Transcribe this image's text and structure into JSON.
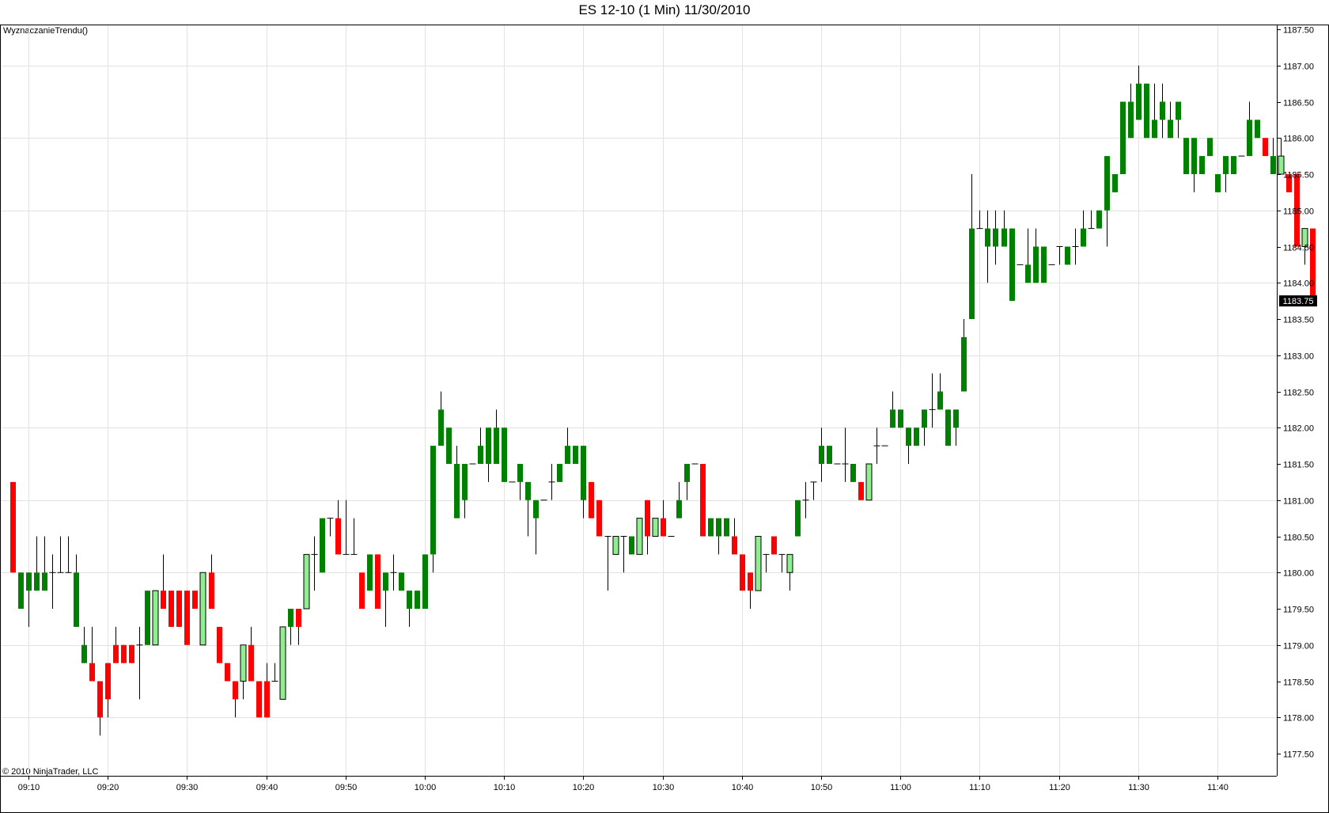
{
  "window": {
    "title": "ES 12-10 (1 Min)  11/30/2010",
    "indicator_label": "WyznaczanieTrendu()",
    "copyright": "© 2010 NinjaTrader, LLC"
  },
  "colors": {
    "up_strong": "#008000",
    "up_light": "#90ee90",
    "down": "#ff0000",
    "wick": "#000000",
    "grid": "#e2e2e2",
    "last_price_bg": "#000000",
    "last_price_fg": "#ffffff"
  },
  "chart_data": {
    "type": "candlestick",
    "title": "ES 12-10 (1 Min)  11/30/2010",
    "ylim": [
      1177.25,
      1187.6
    ],
    "y_ticks": [
      "1177.50",
      "1178.00",
      "1178.50",
      "1179.00",
      "1179.50",
      "1180.00",
      "1180.50",
      "1181.00",
      "1181.50",
      "1182.00",
      "1182.50",
      "1183.00",
      "1183.50",
      "1184.00",
      "1184.50",
      "1185.00",
      "1185.50",
      "1186.00",
      "1186.50",
      "1187.00",
      "1187.50"
    ],
    "x_ticks": [
      "09:10",
      "09:20",
      "09:30",
      "09:40",
      "09:50",
      "10:00",
      "10:10",
      "10:20",
      "10:30",
      "10:40",
      "10:50",
      "11:00",
      "11:10",
      "11:20",
      "11:30",
      "11:40"
    ],
    "first_bar_time": "09:08",
    "last_price": "1183.75",
    "grid": true,
    "color_legend": {
      "g": "up strong (dark green)",
      "l": "up weak (light green)",
      "r": "down (red)"
    },
    "bars_ohlc_color": [
      [
        1181.25,
        1181.25,
        1180.0,
        1180.0,
        "r"
      ],
      [
        1180.0,
        1180.0,
        1179.5,
        1179.5,
        "g"
      ],
      [
        1180.0,
        1180.0,
        1179.25,
        1179.75,
        "g"
      ],
      [
        1180.0,
        1180.5,
        1180.0,
        1179.75,
        "g"
      ],
      [
        1180.0,
        1180.5,
        1180.0,
        1179.75,
        "g"
      ],
      [
        1180.0,
        1180.25,
        1179.5,
        1180.0,
        "g"
      ],
      [
        1180.0,
        1180.5,
        1180.0,
        1180.0,
        "g"
      ],
      [
        1180.0,
        1180.5,
        1180.0,
        1180.0,
        "g"
      ],
      [
        1180.0,
        1180.25,
        1179.25,
        1179.25,
        "g"
      ],
      [
        1179.0,
        1179.25,
        1178.75,
        1178.75,
        "g"
      ],
      [
        1178.75,
        1179.25,
        1178.5,
        1178.5,
        "r"
      ],
      [
        1178.5,
        1178.5,
        1177.75,
        1178.0,
        "r"
      ],
      [
        1178.75,
        1178.75,
        1178.0,
        1178.25,
        "r"
      ],
      [
        1179.0,
        1179.25,
        1178.75,
        1178.75,
        "r"
      ],
      [
        1179.0,
        1179.0,
        1178.75,
        1178.75,
        "r"
      ],
      [
        1179.0,
        1179.0,
        1178.75,
        1178.75,
        "r"
      ],
      [
        1179.0,
        1179.25,
        1178.25,
        1179.0,
        "g"
      ],
      [
        1179.0,
        1179.75,
        1179.0,
        1179.75,
        "g"
      ],
      [
        1179.0,
        1179.0,
        1179.0,
        1179.75,
        "l"
      ],
      [
        1179.75,
        1180.25,
        1179.5,
        1179.5,
        "r"
      ],
      [
        1179.75,
        1179.75,
        1179.25,
        1179.25,
        "r"
      ],
      [
        1179.75,
        1179.75,
        1179.25,
        1179.25,
        "r"
      ],
      [
        1179.75,
        1179.75,
        1179.0,
        1179.0,
        "r"
      ],
      [
        1179.75,
        1179.75,
        1179.5,
        1179.5,
        "r"
      ],
      [
        1179.0,
        1179.0,
        1179.0,
        1180.0,
        "l"
      ],
      [
        1180.0,
        1180.25,
        1179.5,
        1179.5,
        "r"
      ],
      [
        1179.25,
        1179.25,
        1178.75,
        1178.75,
        "r"
      ],
      [
        1178.75,
        1178.75,
        1178.5,
        1178.5,
        "r"
      ],
      [
        1178.5,
        1178.5,
        1178.0,
        1178.25,
        "r"
      ],
      [
        1178.5,
        1178.5,
        1178.25,
        1179.0,
        "l"
      ],
      [
        1179.0,
        1179.25,
        1178.5,
        1178.5,
        "r"
      ],
      [
        1178.5,
        1178.5,
        1178.0,
        1178.0,
        "r"
      ],
      [
        1178.5,
        1178.75,
        1178.0,
        1178.0,
        "r"
      ],
      [
        1178.5,
        1178.75,
        1178.5,
        1178.5,
        "r"
      ],
      [
        1178.25,
        1178.25,
        1178.25,
        1179.25,
        "l"
      ],
      [
        1179.5,
        1179.5,
        1179.0,
        1179.25,
        "g"
      ],
      [
        1179.5,
        1179.5,
        1179.0,
        1179.25,
        "r"
      ],
      [
        1179.5,
        1179.5,
        1179.5,
        1180.25,
        "l"
      ],
      [
        1180.25,
        1180.5,
        1179.75,
        1180.25,
        "r"
      ],
      [
        1180.75,
        1180.75,
        1180.0,
        1180.0,
        "g"
      ],
      [
        1180.75,
        1180.75,
        1180.5,
        1180.75,
        "r"
      ],
      [
        1180.75,
        1181.0,
        1180.25,
        1180.25,
        "r"
      ],
      [
        1180.25,
        1181.0,
        1180.25,
        1180.25,
        "g"
      ],
      [
        1180.25,
        1180.75,
        1180.25,
        1180.25,
        "g"
      ],
      [
        1179.5,
        1179.5,
        1179.5,
        1180.0,
        "r"
      ],
      [
        1180.25,
        1180.25,
        1179.75,
        1179.75,
        "g"
      ],
      [
        1180.25,
        1180.25,
        1179.5,
        1179.5,
        "r"
      ],
      [
        1180.0,
        1180.0,
        1179.25,
        1179.75,
        "g"
      ],
      [
        1180.0,
        1180.25,
        1179.75,
        1180.0,
        "g"
      ],
      [
        1180.0,
        1180.0,
        1179.75,
        1179.75,
        "g"
      ],
      [
        1179.75,
        1179.75,
        1179.25,
        1179.5,
        "g"
      ],
      [
        1179.75,
        1179.75,
        1179.5,
        1179.5,
        "g"
      ],
      [
        1180.25,
        1180.25,
        1179.5,
        1179.5,
        "g"
      ],
      [
        1180.25,
        1180.25,
        1180.0,
        1181.75,
        "g"
      ],
      [
        1182.25,
        1182.5,
        1181.75,
        1181.75,
        "g"
      ],
      [
        1182.0,
        1182.0,
        1181.5,
        1181.5,
        "g"
      ],
      [
        1181.5,
        1181.75,
        1180.75,
        1180.75,
        "g"
      ],
      [
        1181.5,
        1181.5,
        1180.75,
        1181.0,
        "g"
      ],
      [
        1181.5,
        1181.5,
        1181.5,
        1181.5,
        "g"
      ],
      [
        1181.5,
        1182.0,
        1181.5,
        1181.75,
        "g"
      ],
      [
        1182.0,
        1182.0,
        1181.25,
        1181.5,
        "g"
      ],
      [
        1182.0,
        1182.25,
        1181.5,
        1181.5,
        "g"
      ],
      [
        1182.0,
        1182.0,
        1181.25,
        1181.25,
        "g"
      ],
      [
        1181.25,
        1181.25,
        1181.25,
        1181.25,
        "g"
      ],
      [
        1181.5,
        1181.5,
        1181.0,
        1181.25,
        "g"
      ],
      [
        1181.25,
        1181.25,
        1180.5,
        1181.0,
        "g"
      ],
      [
        1181.0,
        1181.0,
        1180.25,
        1180.75,
        "g"
      ],
      [
        1181.0,
        1181.0,
        1181.0,
        1181.0,
        "g"
      ],
      [
        1181.25,
        1181.5,
        1181.0,
        1181.25,
        "g"
      ],
      [
        1181.5,
        1181.5,
        1181.25,
        1181.25,
        "g"
      ],
      [
        1181.75,
        1182.0,
        1181.5,
        1181.5,
        "g"
      ],
      [
        1181.75,
        1181.75,
        1181.5,
        1181.5,
        "g"
      ],
      [
        1181.75,
        1181.75,
        1180.75,
        1181.0,
        "g"
      ],
      [
        1181.25,
        1181.25,
        1180.75,
        1180.75,
        "r"
      ],
      [
        1181.0,
        1181.0,
        1180.5,
        1180.5,
        "r"
      ],
      [
        1180.5,
        1180.5,
        1179.75,
        1180.5,
        "g"
      ],
      [
        1180.5,
        1180.5,
        1180.25,
        1180.25,
        "l"
      ],
      [
        1180.5,
        1180.5,
        1180.0,
        1180.5,
        "g"
      ],
      [
        1180.5,
        1180.5,
        1180.25,
        1180.25,
        "g"
      ],
      [
        1180.25,
        1180.25,
        1180.25,
        1180.75,
        "l"
      ],
      [
        1181.0,
        1181.0,
        1180.25,
        1180.5,
        "r"
      ],
      [
        1180.5,
        1180.5,
        1180.5,
        1180.75,
        "l"
      ],
      [
        1180.75,
        1181.0,
        1180.5,
        1180.5,
        "r"
      ],
      [
        1180.5,
        1180.5,
        1180.5,
        1180.5,
        "g"
      ],
      [
        1181.0,
        1181.25,
        1180.75,
        1180.75,
        "g"
      ],
      [
        1181.5,
        1181.5,
        1181.0,
        1181.25,
        "g"
      ],
      [
        1181.5,
        1181.5,
        1181.5,
        1181.5,
        "g"
      ],
      [
        1181.5,
        1181.5,
        1180.5,
        1180.5,
        "r"
      ],
      [
        1180.75,
        1180.75,
        1180.5,
        1180.5,
        "g"
      ],
      [
        1180.75,
        1180.75,
        1180.25,
        1180.5,
        "g"
      ],
      [
        1180.75,
        1180.75,
        1180.5,
        1180.5,
        "g"
      ],
      [
        1180.5,
        1180.75,
        1180.25,
        1180.25,
        "r"
      ],
      [
        1180.25,
        1180.25,
        1179.75,
        1179.75,
        "r"
      ],
      [
        1180.0,
        1180.0,
        1179.5,
        1179.75,
        "r"
      ],
      [
        1179.75,
        1179.75,
        1179.75,
        1180.5,
        "l"
      ],
      [
        1180.25,
        1180.25,
        1180.0,
        1180.25,
        "g"
      ],
      [
        1180.5,
        1180.5,
        1180.25,
        1180.25,
        "r"
      ],
      [
        1180.25,
        1180.25,
        1180.0,
        1180.25,
        "g"
      ],
      [
        1180.0,
        1180.0,
        1179.75,
        1180.25,
        "l"
      ],
      [
        1180.5,
        1180.5,
        1180.5,
        1181.0,
        "g"
      ],
      [
        1181.0,
        1181.25,
        1180.75,
        1181.0,
        "g"
      ],
      [
        1181.25,
        1181.25,
        1181.0,
        1181.25,
        "g"
      ],
      [
        1181.75,
        1182.0,
        1181.25,
        1181.5,
        "g"
      ],
      [
        1181.75,
        1181.75,
        1181.5,
        1181.5,
        "g"
      ],
      [
        1181.5,
        1181.5,
        1181.5,
        1181.5,
        "g"
      ],
      [
        1181.5,
        1182.0,
        1181.25,
        1181.5,
        "g"
      ],
      [
        1181.5,
        1181.5,
        1181.25,
        1181.25,
        "g"
      ],
      [
        1181.25,
        1181.25,
        1181.0,
        1181.0,
        "r"
      ],
      [
        1181.0,
        1181.0,
        1181.0,
        1181.5,
        "l"
      ],
      [
        1181.75,
        1182.0,
        1181.5,
        1181.75,
        "g"
      ],
      [
        1181.75,
        1181.75,
        1181.75,
        1181.75,
        "g"
      ],
      [
        1182.25,
        1182.5,
        1182.0,
        1182.0,
        "g"
      ],
      [
        1182.25,
        1182.25,
        1182.0,
        1182.0,
        "g"
      ],
      [
        1182.0,
        1182.0,
        1181.5,
        1181.75,
        "g"
      ],
      [
        1182.0,
        1182.0,
        1181.75,
        1181.75,
        "g"
      ],
      [
        1182.25,
        1182.25,
        1181.75,
        1182.0,
        "g"
      ],
      [
        1182.25,
        1182.75,
        1182.0,
        1182.25,
        "g"
      ],
      [
        1182.5,
        1182.75,
        1182.25,
        1182.25,
        "g"
      ],
      [
        1182.25,
        1182.25,
        1181.75,
        1181.75,
        "g"
      ],
      [
        1182.25,
        1182.25,
        1181.75,
        1182.0,
        "g"
      ],
      [
        1183.25,
        1183.5,
        1182.5,
        1182.5,
        "g"
      ],
      [
        1184.75,
        1185.5,
        1183.5,
        1183.5,
        "g"
      ],
      [
        1184.75,
        1185.0,
        1184.75,
        1184.75,
        "g"
      ],
      [
        1184.75,
        1185.0,
        1184.0,
        1184.5,
        "g"
      ],
      [
        1184.75,
        1185.0,
        1184.25,
        1184.5,
        "g"
      ],
      [
        1184.75,
        1185.0,
        1184.5,
        1184.5,
        "g"
      ],
      [
        1184.75,
        1184.75,
        1183.75,
        1183.75,
        "g"
      ],
      [
        1184.25,
        1184.25,
        1184.25,
        1184.25,
        "g"
      ],
      [
        1184.25,
        1184.75,
        1184.0,
        1184.0,
        "g"
      ],
      [
        1184.5,
        1184.75,
        1184.0,
        1184.0,
        "g"
      ],
      [
        1184.5,
        1184.5,
        1184.0,
        1184.0,
        "g"
      ],
      [
        1184.25,
        1184.25,
        1184.25,
        1184.25,
        "g"
      ],
      [
        1184.5,
        1184.5,
        1184.25,
        1184.5,
        "g"
      ],
      [
        1184.5,
        1184.5,
        1184.25,
        1184.25,
        "g"
      ],
      [
        1184.5,
        1184.75,
        1184.25,
        1184.5,
        "g"
      ],
      [
        1184.75,
        1185.0,
        1184.5,
        1184.5,
        "g"
      ],
      [
        1184.75,
        1185.0,
        1184.75,
        1184.75,
        "g"
      ],
      [
        1185.0,
        1185.0,
        1184.75,
        1184.75,
        "g"
      ],
      [
        1185.75,
        1185.75,
        1184.5,
        1185.0,
        "g"
      ],
      [
        1185.5,
        1185.5,
        1185.25,
        1185.25,
        "g"
      ],
      [
        1186.5,
        1186.5,
        1185.5,
        1185.5,
        "g"
      ],
      [
        1186.5,
        1186.75,
        1186.0,
        1186.0,
        "g"
      ],
      [
        1186.75,
        1187.0,
        1186.25,
        1186.25,
        "g"
      ],
      [
        1186.75,
        1186.75,
        1186.25,
        1186.0,
        "g"
      ],
      [
        1186.25,
        1186.75,
        1186.0,
        1186.0,
        "g"
      ],
      [
        1186.5,
        1186.75,
        1186.0,
        1186.25,
        "g"
      ],
      [
        1186.25,
        1186.5,
        1186.0,
        1186.0,
        "g"
      ],
      [
        1186.5,
        1186.5,
        1186.0,
        1186.25,
        "g"
      ],
      [
        1186.0,
        1186.0,
        1185.5,
        1185.5,
        "g"
      ],
      [
        1186.0,
        1186.0,
        1185.25,
        1185.5,
        "g"
      ],
      [
        1185.75,
        1185.75,
        1185.5,
        1185.5,
        "g"
      ],
      [
        1186.0,
        1186.0,
        1185.75,
        1185.75,
        "g"
      ],
      [
        1185.5,
        1185.5,
        1185.25,
        1185.25,
        "g"
      ],
      [
        1185.75,
        1185.75,
        1185.25,
        1185.5,
        "g"
      ],
      [
        1185.75,
        1185.75,
        1185.5,
        1185.5,
        "g"
      ],
      [
        1185.75,
        1185.75,
        1185.75,
        1185.75,
        "g"
      ],
      [
        1186.25,
        1186.5,
        1185.75,
        1185.75,
        "g"
      ],
      [
        1186.25,
        1186.25,
        1186.0,
        1186.0,
        "g"
      ],
      [
        1186.0,
        1186.0,
        1185.75,
        1185.75,
        "r"
      ],
      [
        1185.75,
        1186.0,
        1185.5,
        1185.5,
        "g"
      ],
      [
        1185.5,
        1186.0,
        1185.5,
        1185.75,
        "l"
      ],
      [
        1185.5,
        1185.5,
        1185.25,
        1185.25,
        "r"
      ],
      [
        1185.5,
        1185.5,
        1184.5,
        1184.5,
        "r"
      ],
      [
        1184.5,
        1184.75,
        1184.25,
        1184.75,
        "l"
      ],
      [
        1184.75,
        1184.75,
        1183.75,
        1183.75,
        "r"
      ]
    ]
  }
}
